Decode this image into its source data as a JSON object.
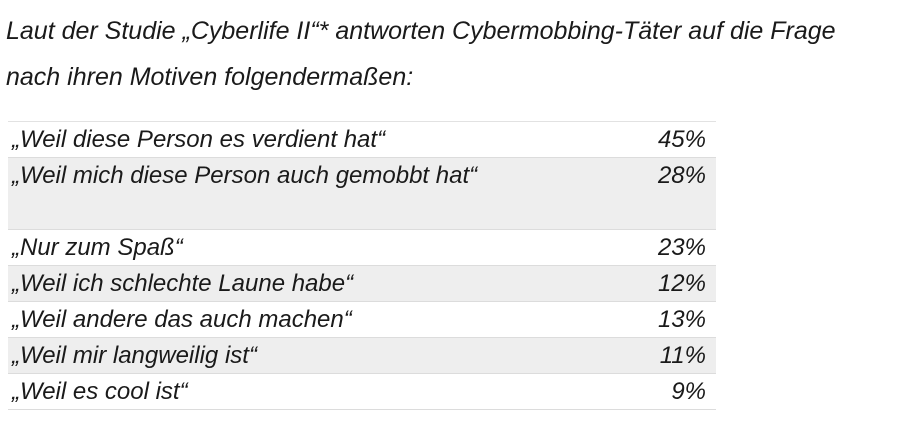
{
  "intro": {
    "line1": "Laut der Studie „Cyberlife II“* antworten Cybermobbing-Täter auf die Frage",
    "line2": "nach ihren Motiven folgendermaßen:"
  },
  "table": {
    "rows": [
      {
        "label": "„Weil diese Person es verdient hat“",
        "value": "45%"
      },
      {
        "label": "„Weil mich diese Person auch gemobbt hat“",
        "value": "28%"
      },
      {
        "label": "„Nur zum Spaß“",
        "value": "23%"
      },
      {
        "label": "„Weil ich schlechte Laune habe“",
        "value": "12%"
      },
      {
        "label": "„Weil andere das auch machen“",
        "value": "13%"
      },
      {
        "label": "„Weil mir langweilig ist“",
        "value": "11%"
      },
      {
        "label": "„Weil es cool ist“",
        "value": "9%"
      }
    ]
  }
}
